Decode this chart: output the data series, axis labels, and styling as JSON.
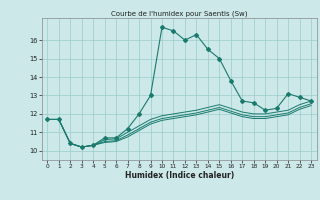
{
  "title": "Courbe de l'humidex pour Saentis (Sw)",
  "xlabel": "Humidex (Indice chaleur)",
  "bg_color": "#cce8e8",
  "line_color": "#1a7a6e",
  "grid_color": "#99cccc",
  "xlim": [
    -0.5,
    23.5
  ],
  "ylim": [
    9.5,
    17.2
  ],
  "xticks": [
    0,
    1,
    2,
    3,
    4,
    5,
    6,
    7,
    8,
    9,
    10,
    11,
    12,
    13,
    14,
    15,
    16,
    17,
    18,
    19,
    20,
    21,
    22,
    23
  ],
  "yticks": [
    10,
    11,
    12,
    13,
    14,
    15,
    16
  ],
  "series": [
    {
      "x": [
        0,
        1,
        2,
        3,
        4,
        5,
        6,
        7,
        8,
        9,
        10,
        11,
        12,
        13,
        14,
        15,
        16,
        17,
        18,
        19,
        20,
        21,
        22,
        23
      ],
      "y": [
        11.7,
        11.7,
        10.4,
        10.2,
        10.3,
        10.7,
        10.7,
        11.2,
        12.0,
        13.0,
        16.7,
        16.5,
        16.0,
        16.3,
        15.5,
        15.0,
        13.8,
        12.7,
        12.6,
        12.2,
        12.3,
        13.1,
        12.9,
        12.7
      ],
      "markers": true
    },
    {
      "x": [
        0,
        1,
        2,
        3,
        4,
        5,
        6,
        7,
        8,
        9,
        10,
        11,
        12,
        13,
        14,
        15,
        16,
        17,
        18,
        19,
        20,
        21,
        22,
        23
      ],
      "y": [
        11.7,
        11.7,
        10.4,
        10.2,
        10.3,
        10.6,
        10.65,
        11.0,
        11.35,
        11.7,
        11.9,
        12.0,
        12.1,
        12.2,
        12.35,
        12.5,
        12.3,
        12.1,
        12.0,
        12.0,
        12.1,
        12.2,
        12.5,
        12.7
      ],
      "markers": false
    },
    {
      "x": [
        0,
        1,
        2,
        3,
        4,
        5,
        6,
        7,
        8,
        9,
        10,
        11,
        12,
        13,
        14,
        15,
        16,
        17,
        18,
        19,
        20,
        21,
        22,
        23
      ],
      "y": [
        11.7,
        11.7,
        10.4,
        10.2,
        10.3,
        10.5,
        10.55,
        10.85,
        11.2,
        11.55,
        11.75,
        11.85,
        11.95,
        12.05,
        12.2,
        12.35,
        12.15,
        11.95,
        11.85,
        11.85,
        11.95,
        12.05,
        12.35,
        12.55
      ],
      "markers": false
    },
    {
      "x": [
        0,
        1,
        2,
        3,
        4,
        5,
        6,
        7,
        8,
        9,
        10,
        11,
        12,
        13,
        14,
        15,
        16,
        17,
        18,
        19,
        20,
        21,
        22,
        23
      ],
      "y": [
        11.7,
        11.7,
        10.4,
        10.2,
        10.3,
        10.45,
        10.5,
        10.75,
        11.1,
        11.45,
        11.65,
        11.75,
        11.85,
        11.95,
        12.1,
        12.25,
        12.05,
        11.85,
        11.75,
        11.75,
        11.85,
        11.95,
        12.25,
        12.45
      ],
      "markers": false
    }
  ]
}
